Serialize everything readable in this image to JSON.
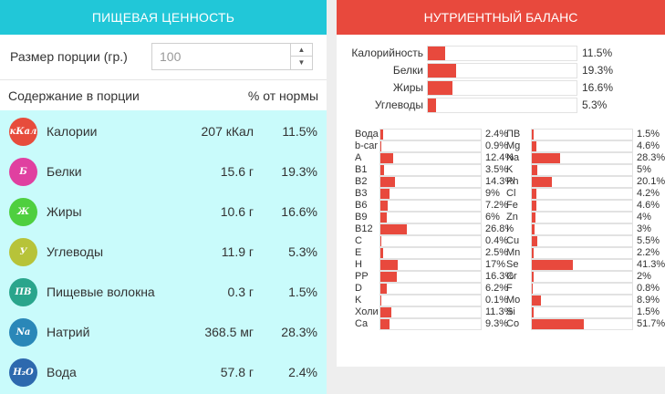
{
  "left": {
    "title": "ПИЩЕВАЯ ЦЕННОСТЬ",
    "portion_label": "Размер порции (гр.)",
    "portion_value": "100",
    "col_content": "Содержание в порции",
    "col_pct": "% от нормы",
    "rows": [
      {
        "badge": "кКал",
        "name": "Калории",
        "amount": "207 кКал",
        "pct": "11.5%",
        "color": "#e74c3c"
      },
      {
        "badge": "Б",
        "name": "Белки",
        "amount": "15.6 г",
        "pct": "19.3%",
        "color": "#e040a0"
      },
      {
        "badge": "Ж",
        "name": "Жиры",
        "amount": "10.6 г",
        "pct": "16.6%",
        "color": "#4fcf3f"
      },
      {
        "badge": "У",
        "name": "Углеводы",
        "amount": "11.9 г",
        "pct": "5.3%",
        "color": "#b7c339"
      },
      {
        "badge": "ПВ",
        "name": "Пищевые волокна",
        "amount": "0.3 г",
        "pct": "1.5%",
        "color": "#2aa58c"
      },
      {
        "badge": "Na",
        "name": "Натрий",
        "amount": "368.5 мг",
        "pct": "28.3%",
        "color": "#2a87b8"
      },
      {
        "badge": "H₂O",
        "name": "Вода",
        "amount": "57.8 г",
        "pct": "2.4%",
        "color": "#2d69ae"
      }
    ]
  },
  "right": {
    "title": "НУТРИЕНТНЫЙ БАЛАНС",
    "summary": [
      {
        "label": "Калорийность",
        "value": 11.5,
        "pct": "11.5%"
      },
      {
        "label": "Белки",
        "value": 19.3,
        "pct": "19.3%"
      },
      {
        "label": "Жиры",
        "value": 16.6,
        "pct": "16.6%"
      },
      {
        "label": "Углеводы",
        "value": 5.3,
        "pct": "5.3%"
      }
    ],
    "left_col": [
      {
        "label": "Вода",
        "value": 2.4,
        "pct": "2.4%"
      },
      {
        "label": "b-car",
        "value": 0.9,
        "pct": "0.9%"
      },
      {
        "label": "A",
        "value": 12.4,
        "pct": "12.4%"
      },
      {
        "label": "B1",
        "value": 3.5,
        "pct": "3.5%"
      },
      {
        "label": "B2",
        "value": 14.3,
        "pct": "14.3%"
      },
      {
        "label": "B3",
        "value": 9,
        "pct": "9%"
      },
      {
        "label": "B6",
        "value": 7.2,
        "pct": "7.2%"
      },
      {
        "label": "B9",
        "value": 6,
        "pct": "6%"
      },
      {
        "label": "B12",
        "value": 26.8,
        "pct": "26.8%"
      },
      {
        "label": "C",
        "value": 0.4,
        "pct": "0.4%"
      },
      {
        "label": "E",
        "value": 2.5,
        "pct": "2.5%"
      },
      {
        "label": "H",
        "value": 17,
        "pct": "17%"
      },
      {
        "label": "PP",
        "value": 16.3,
        "pct": "16.3%"
      },
      {
        "label": "D",
        "value": 6.2,
        "pct": "6.2%"
      },
      {
        "label": "K",
        "value": 0.1,
        "pct": "0.1%"
      },
      {
        "label": "Холи",
        "value": 11.3,
        "pct": "11.3%"
      },
      {
        "label": "Ca",
        "value": 9.3,
        "pct": "9.3%"
      }
    ],
    "right_col": [
      {
        "label": "ПВ",
        "value": 1.5,
        "pct": "1.5%"
      },
      {
        "label": "Mg",
        "value": 4.6,
        "pct": "4.6%"
      },
      {
        "label": "Na",
        "value": 28.3,
        "pct": "28.3%"
      },
      {
        "label": "K",
        "value": 5,
        "pct": "5%"
      },
      {
        "label": "Ph",
        "value": 20.1,
        "pct": "20.1%"
      },
      {
        "label": "Cl",
        "value": 4.2,
        "pct": "4.2%"
      },
      {
        "label": "Fe",
        "value": 4.6,
        "pct": "4.6%"
      },
      {
        "label": "Zn",
        "value": 4,
        "pct": "4%"
      },
      {
        "label": "I",
        "value": 3,
        "pct": "3%"
      },
      {
        "label": "Cu",
        "value": 5.5,
        "pct": "5.5%"
      },
      {
        "label": "Mn",
        "value": 2.2,
        "pct": "2.2%"
      },
      {
        "label": "Se",
        "value": 41.3,
        "pct": "41.3%"
      },
      {
        "label": "Cr",
        "value": 2,
        "pct": "2%"
      },
      {
        "label": "F",
        "value": 0.8,
        "pct": "0.8%"
      },
      {
        "label": "Mo",
        "value": 8.9,
        "pct": "8.9%"
      },
      {
        "label": "Si",
        "value": 1.5,
        "pct": "1.5%"
      },
      {
        "label": "Co",
        "value": 51.7,
        "pct": "51.7%"
      }
    ]
  }
}
